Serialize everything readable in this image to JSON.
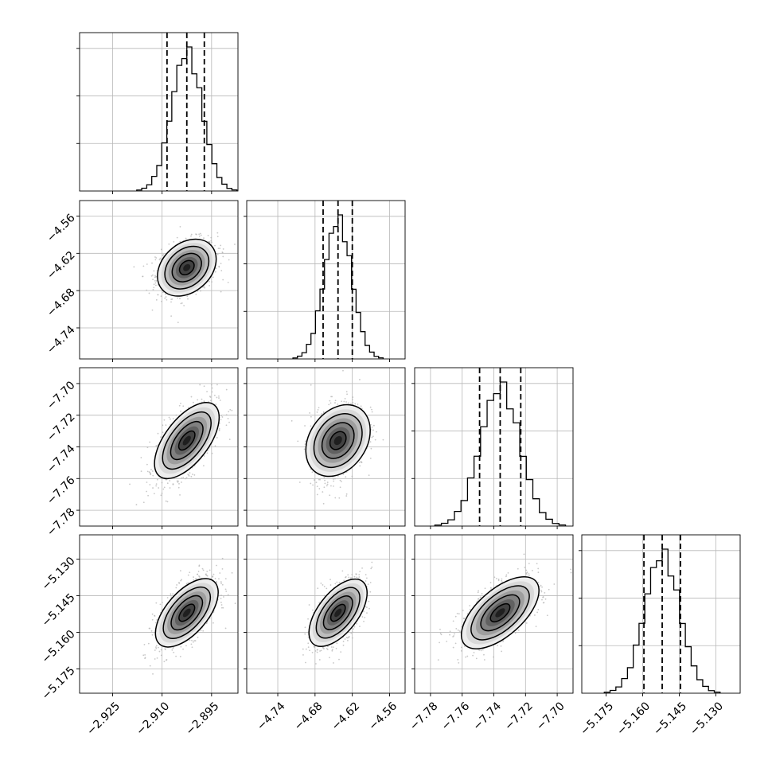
{
  "chart_data": {
    "type": "corner",
    "grid": true,
    "parameters": [
      {
        "axis_range": [
          -2.935,
          -2.887
        ],
        "ticks": [
          -2.925,
          -2.91,
          -2.895
        ],
        "tick_labels": [
          "−2.925",
          "−2.910",
          "−2.895"
        ],
        "quantiles": [
          -2.9085,
          -2.9025,
          -2.8972
        ],
        "median": -2.9025,
        "sigma": 0.0046
      },
      {
        "axis_range": [
          -4.79,
          -4.535
        ],
        "ticks": [
          -4.74,
          -4.68,
          -4.62,
          -4.56
        ],
        "tick_labels": [
          "−4.74",
          "−4.68",
          "−4.62",
          "−4.56"
        ],
        "quantiles": [
          -4.667,
          -4.643,
          -4.62
        ],
        "median": -4.643,
        "sigma": 0.022
      },
      {
        "axis_range": [
          -7.79,
          -7.69
        ],
        "ticks": [
          -7.78,
          -7.76,
          -7.74,
          -7.72,
          -7.7
        ],
        "tick_labels": [
          "−7.78",
          "−7.76",
          "−7.74",
          "−7.72",
          "−7.70"
        ],
        "quantiles": [
          -7.749,
          -7.736,
          -7.723
        ],
        "median": -7.736,
        "sigma": 0.0125
      },
      {
        "axis_range": [
          -5.185,
          -5.12
        ],
        "ticks": [
          -5.175,
          -5.16,
          -5.145,
          -5.13
        ],
        "tick_labels": [
          "−5.175",
          "−5.160",
          "−5.145",
          "−5.130"
        ],
        "quantiles": [
          -5.1595,
          -5.152,
          -5.1445
        ],
        "median": -5.152,
        "sigma": 0.0072
      }
    ],
    "correlations": [
      [
        1.0,
        0.3,
        0.62,
        0.6
      ],
      [
        0.3,
        1.0,
        0.3,
        0.6
      ],
      [
        0.62,
        0.3,
        1.0,
        0.62
      ],
      [
        0.6,
        0.6,
        0.62,
        1.0
      ]
    ],
    "histogram_bins": 20,
    "contour_levels": [
      0.118,
      0.393,
      0.675,
      0.865
    ],
    "colors": {
      "line": "#000000",
      "scatter": "#b0b0b0",
      "grid": "#b8b8b8",
      "density_low": "#ffffff",
      "density_high": "#000000"
    }
  }
}
